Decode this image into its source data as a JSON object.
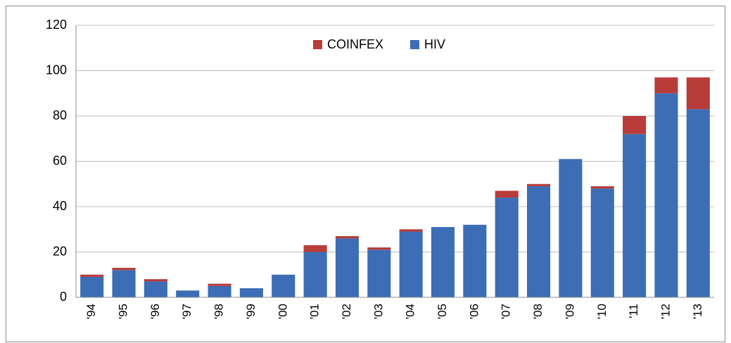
{
  "chart_data": {
    "type": "stacked_bar",
    "categories": [
      "'94",
      "'95",
      "'96",
      "'97",
      "'98",
      "'99",
      "'00",
      "'01",
      "'02",
      "'03",
      "'04",
      "'05",
      "'06",
      "'07",
      "'08",
      "'09",
      "'10",
      "'11",
      "'12",
      "'13"
    ],
    "series": [
      {
        "name": "HIV",
        "color": "#3d6db5",
        "values": [
          9,
          12,
          7,
          3,
          5,
          4,
          10,
          20,
          26,
          21,
          29,
          31,
          32,
          44,
          49,
          61,
          48,
          72,
          90,
          83
        ]
      },
      {
        "name": "COINFEX",
        "color": "#b83c3a",
        "values": [
          1,
          1,
          1,
          0,
          1,
          0,
          0,
          3,
          1,
          1,
          1,
          0,
          0,
          3,
          1,
          0,
          1,
          8,
          7,
          14
        ]
      }
    ],
    "ylim": [
      0,
      120
    ],
    "yticks": [
      0,
      20,
      40,
      60,
      80,
      100,
      120
    ],
    "grid": true
  }
}
